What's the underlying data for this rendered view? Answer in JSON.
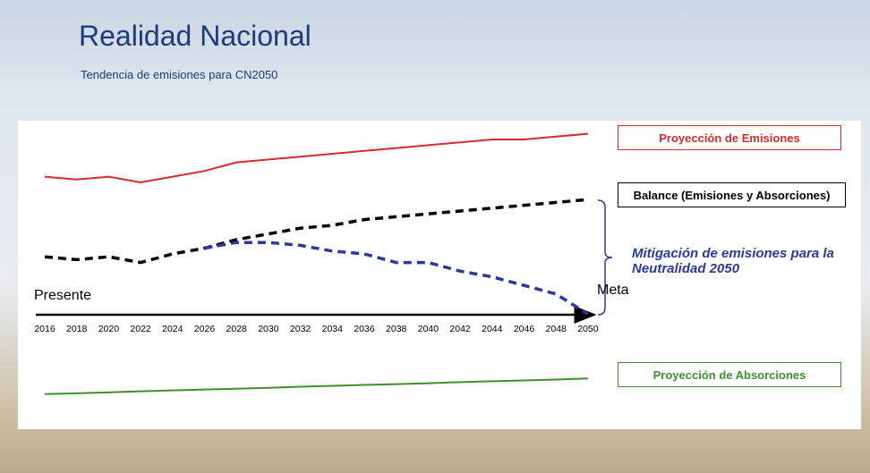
{
  "chart_data": {
    "type": "line",
    "title": "Realidad Nacional",
    "subtitle": "Tendencia de emisiones para CN2050",
    "categories": [
      "2016",
      "2018",
      "2020",
      "2022",
      "2024",
      "2026",
      "2028",
      "2030",
      "2032",
      "2034",
      "2036",
      "2038",
      "2040",
      "2042",
      "2044",
      "2046",
      "2048",
      "2050"
    ],
    "ylim": [
      0,
      100
    ],
    "annotations": [
      "Presente",
      "Meta"
    ],
    "series": [
      {
        "name": "Proyección de Emisiones",
        "color": "#d62b2b",
        "style": "solid",
        "values": [
          82,
          81,
          82,
          80,
          82,
          84,
          87,
          88,
          89,
          90,
          91,
          92,
          93,
          94,
          95,
          95,
          96,
          97
        ]
      },
      {
        "name": "Balance (Emisiones y Absorciones)",
        "color": "#000000",
        "style": "dashed",
        "values": [
          54,
          53,
          54,
          52,
          55,
          57,
          60,
          62,
          64,
          65,
          67,
          68,
          69,
          70,
          71,
          72,
          73,
          74
        ]
      },
      {
        "name": "Mitigación de emisiones para la Neutralidad 2050",
        "color": "#2b3a9a",
        "style": "dashed",
        "values": [
          null,
          null,
          null,
          null,
          null,
          57,
          59,
          59,
          58,
          56,
          55,
          52,
          52,
          49,
          47,
          44,
          41,
          34
        ]
      },
      {
        "name": "Proyección de Absorciones",
        "color": "#3e8e2e",
        "style": "solid",
        "values": [
          6,
          6.3,
          6.6,
          7,
          7.3,
          7.6,
          7.9,
          8.2,
          8.6,
          8.9,
          9.2,
          9.5,
          9.8,
          10.2,
          10.5,
          10.8,
          11.1,
          11.5
        ]
      }
    ]
  }
}
